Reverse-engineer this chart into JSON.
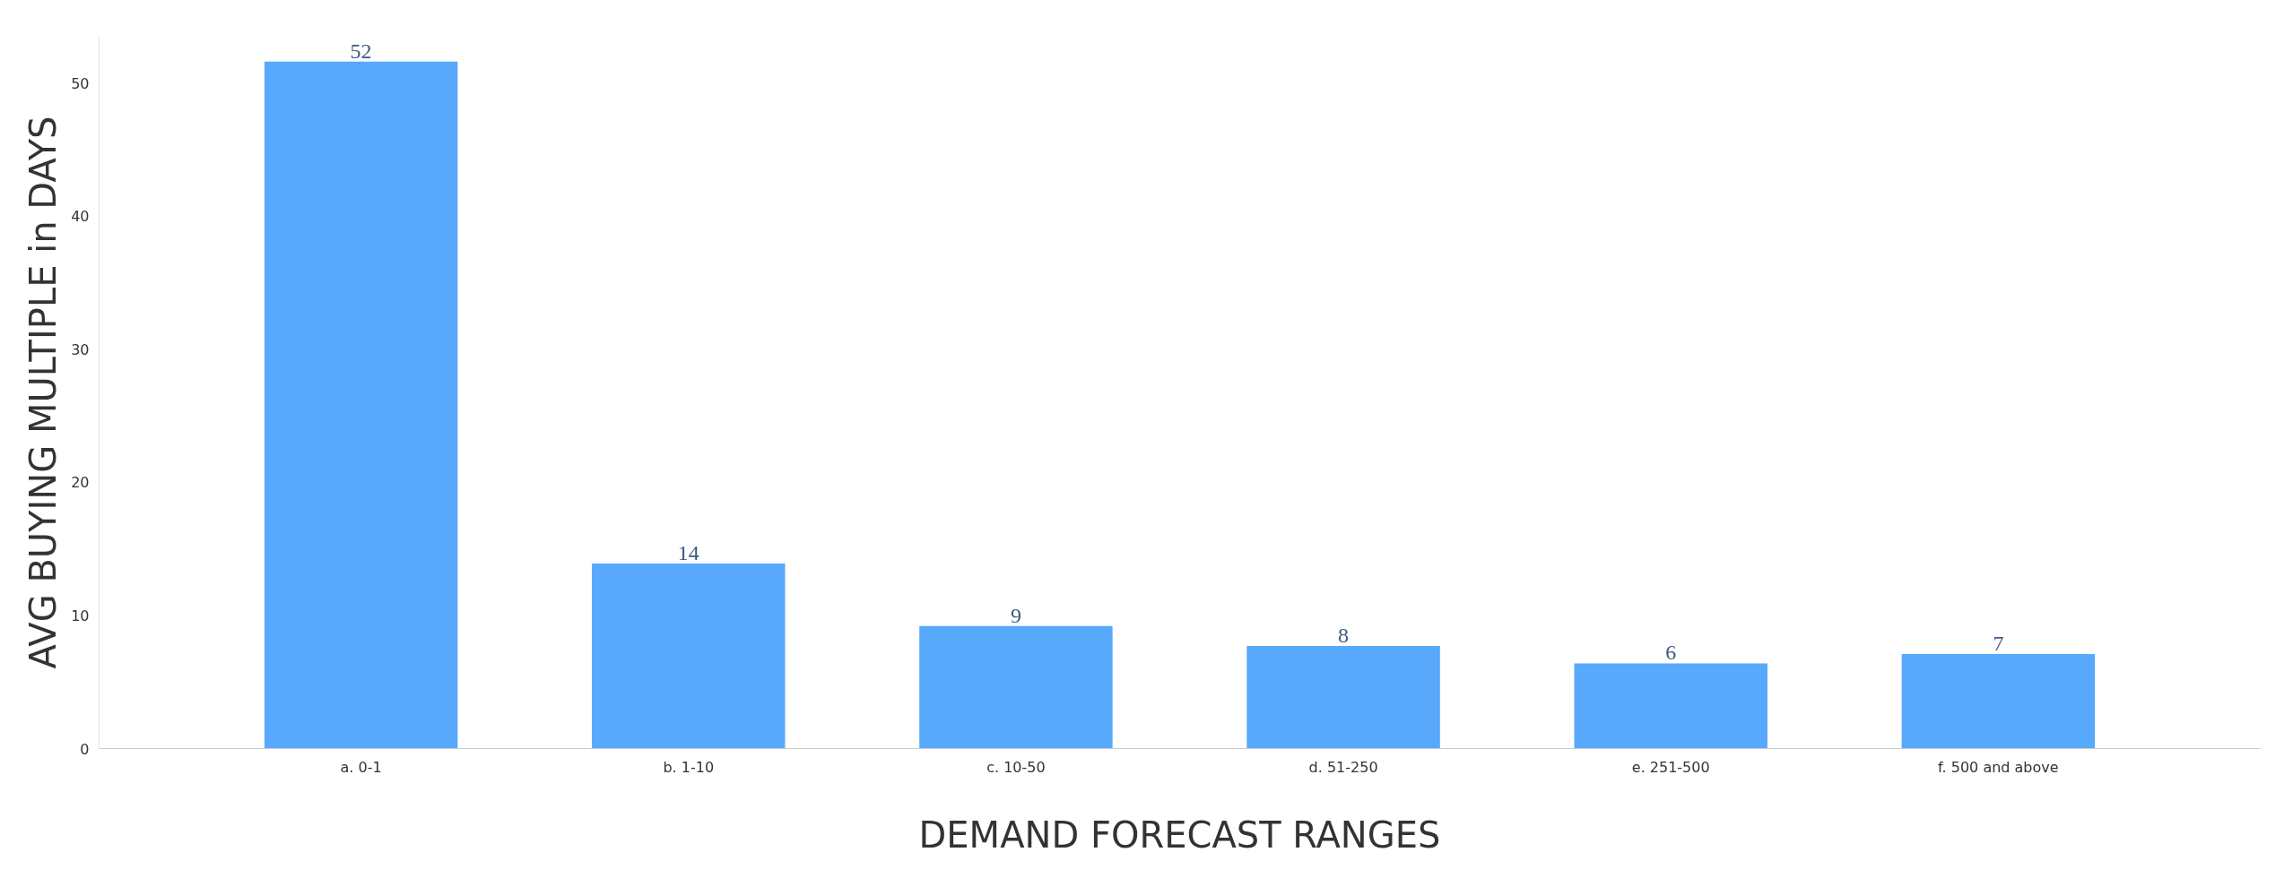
{
  "chart_data": {
    "type": "bar",
    "xlabel": "DEMAND FORECAST RANGES",
    "ylabel": "AVG BUYING MULTIPLE in DAYS",
    "categories": [
      "a. 0-1",
      "b. 1-10",
      "c. 10-50",
      "d. 51-250",
      "e. 251-500",
      "f. 500 and above"
    ],
    "values": [
      51.6,
      13.9,
      9.2,
      7.7,
      6.4,
      7.1
    ],
    "value_labels": [
      "52",
      "14",
      "9",
      "8",
      "6",
      "7"
    ],
    "color": "#58a8fb",
    "ylim": [
      0,
      53.5
    ],
    "yticks": [
      0,
      10,
      20,
      30,
      40,
      50
    ],
    "grid": false
  }
}
